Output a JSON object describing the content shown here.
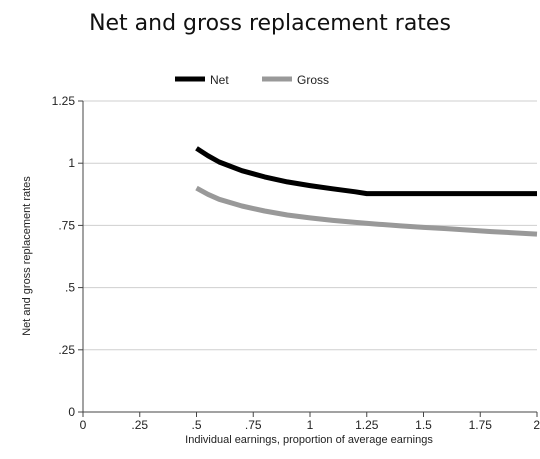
{
  "chart_data": {
    "type": "line",
    "title": "Net and gross replacement rates",
    "xlabel": "Individual earnings, proportion of average earnings",
    "ylabel": "Net and gross replacement rates",
    "xlim": [
      0,
      2
    ],
    "ylim": [
      0,
      1.25
    ],
    "x_ticks": [
      0,
      0.25,
      0.5,
      0.75,
      1,
      1.25,
      1.5,
      1.75,
      2
    ],
    "x_tick_labels": [
      "0",
      ".25",
      ".5",
      ".75",
      "1",
      "1.25",
      "1.5",
      "1.75",
      "2"
    ],
    "y_ticks": [
      0,
      0.25,
      0.5,
      0.75,
      1,
      1.25
    ],
    "y_tick_labels": [
      "0",
      ".25",
      ".5",
      ".75",
      "1",
      "1.25"
    ],
    "grid": "horizontal",
    "legend_position": "top",
    "series": [
      {
        "name": "Net",
        "color": "#000000",
        "x": [
          0.5,
          0.55,
          0.6,
          0.7,
          0.8,
          0.9,
          1.0,
          1.1,
          1.2,
          1.25,
          1.4,
          1.6,
          1.8,
          2.0
        ],
        "values": [
          1.06,
          1.03,
          1.005,
          0.97,
          0.945,
          0.925,
          0.91,
          0.897,
          0.885,
          0.878,
          0.878,
          0.878,
          0.878,
          0.878
        ]
      },
      {
        "name": "Gross",
        "color": "#999999",
        "x": [
          0.5,
          0.55,
          0.6,
          0.7,
          0.8,
          0.9,
          1.0,
          1.1,
          1.2,
          1.3,
          1.4,
          1.5,
          1.6,
          1.8,
          2.0
        ],
        "values": [
          0.9,
          0.875,
          0.855,
          0.828,
          0.808,
          0.792,
          0.78,
          0.77,
          0.762,
          0.755,
          0.748,
          0.742,
          0.737,
          0.725,
          0.715
        ]
      }
    ]
  }
}
